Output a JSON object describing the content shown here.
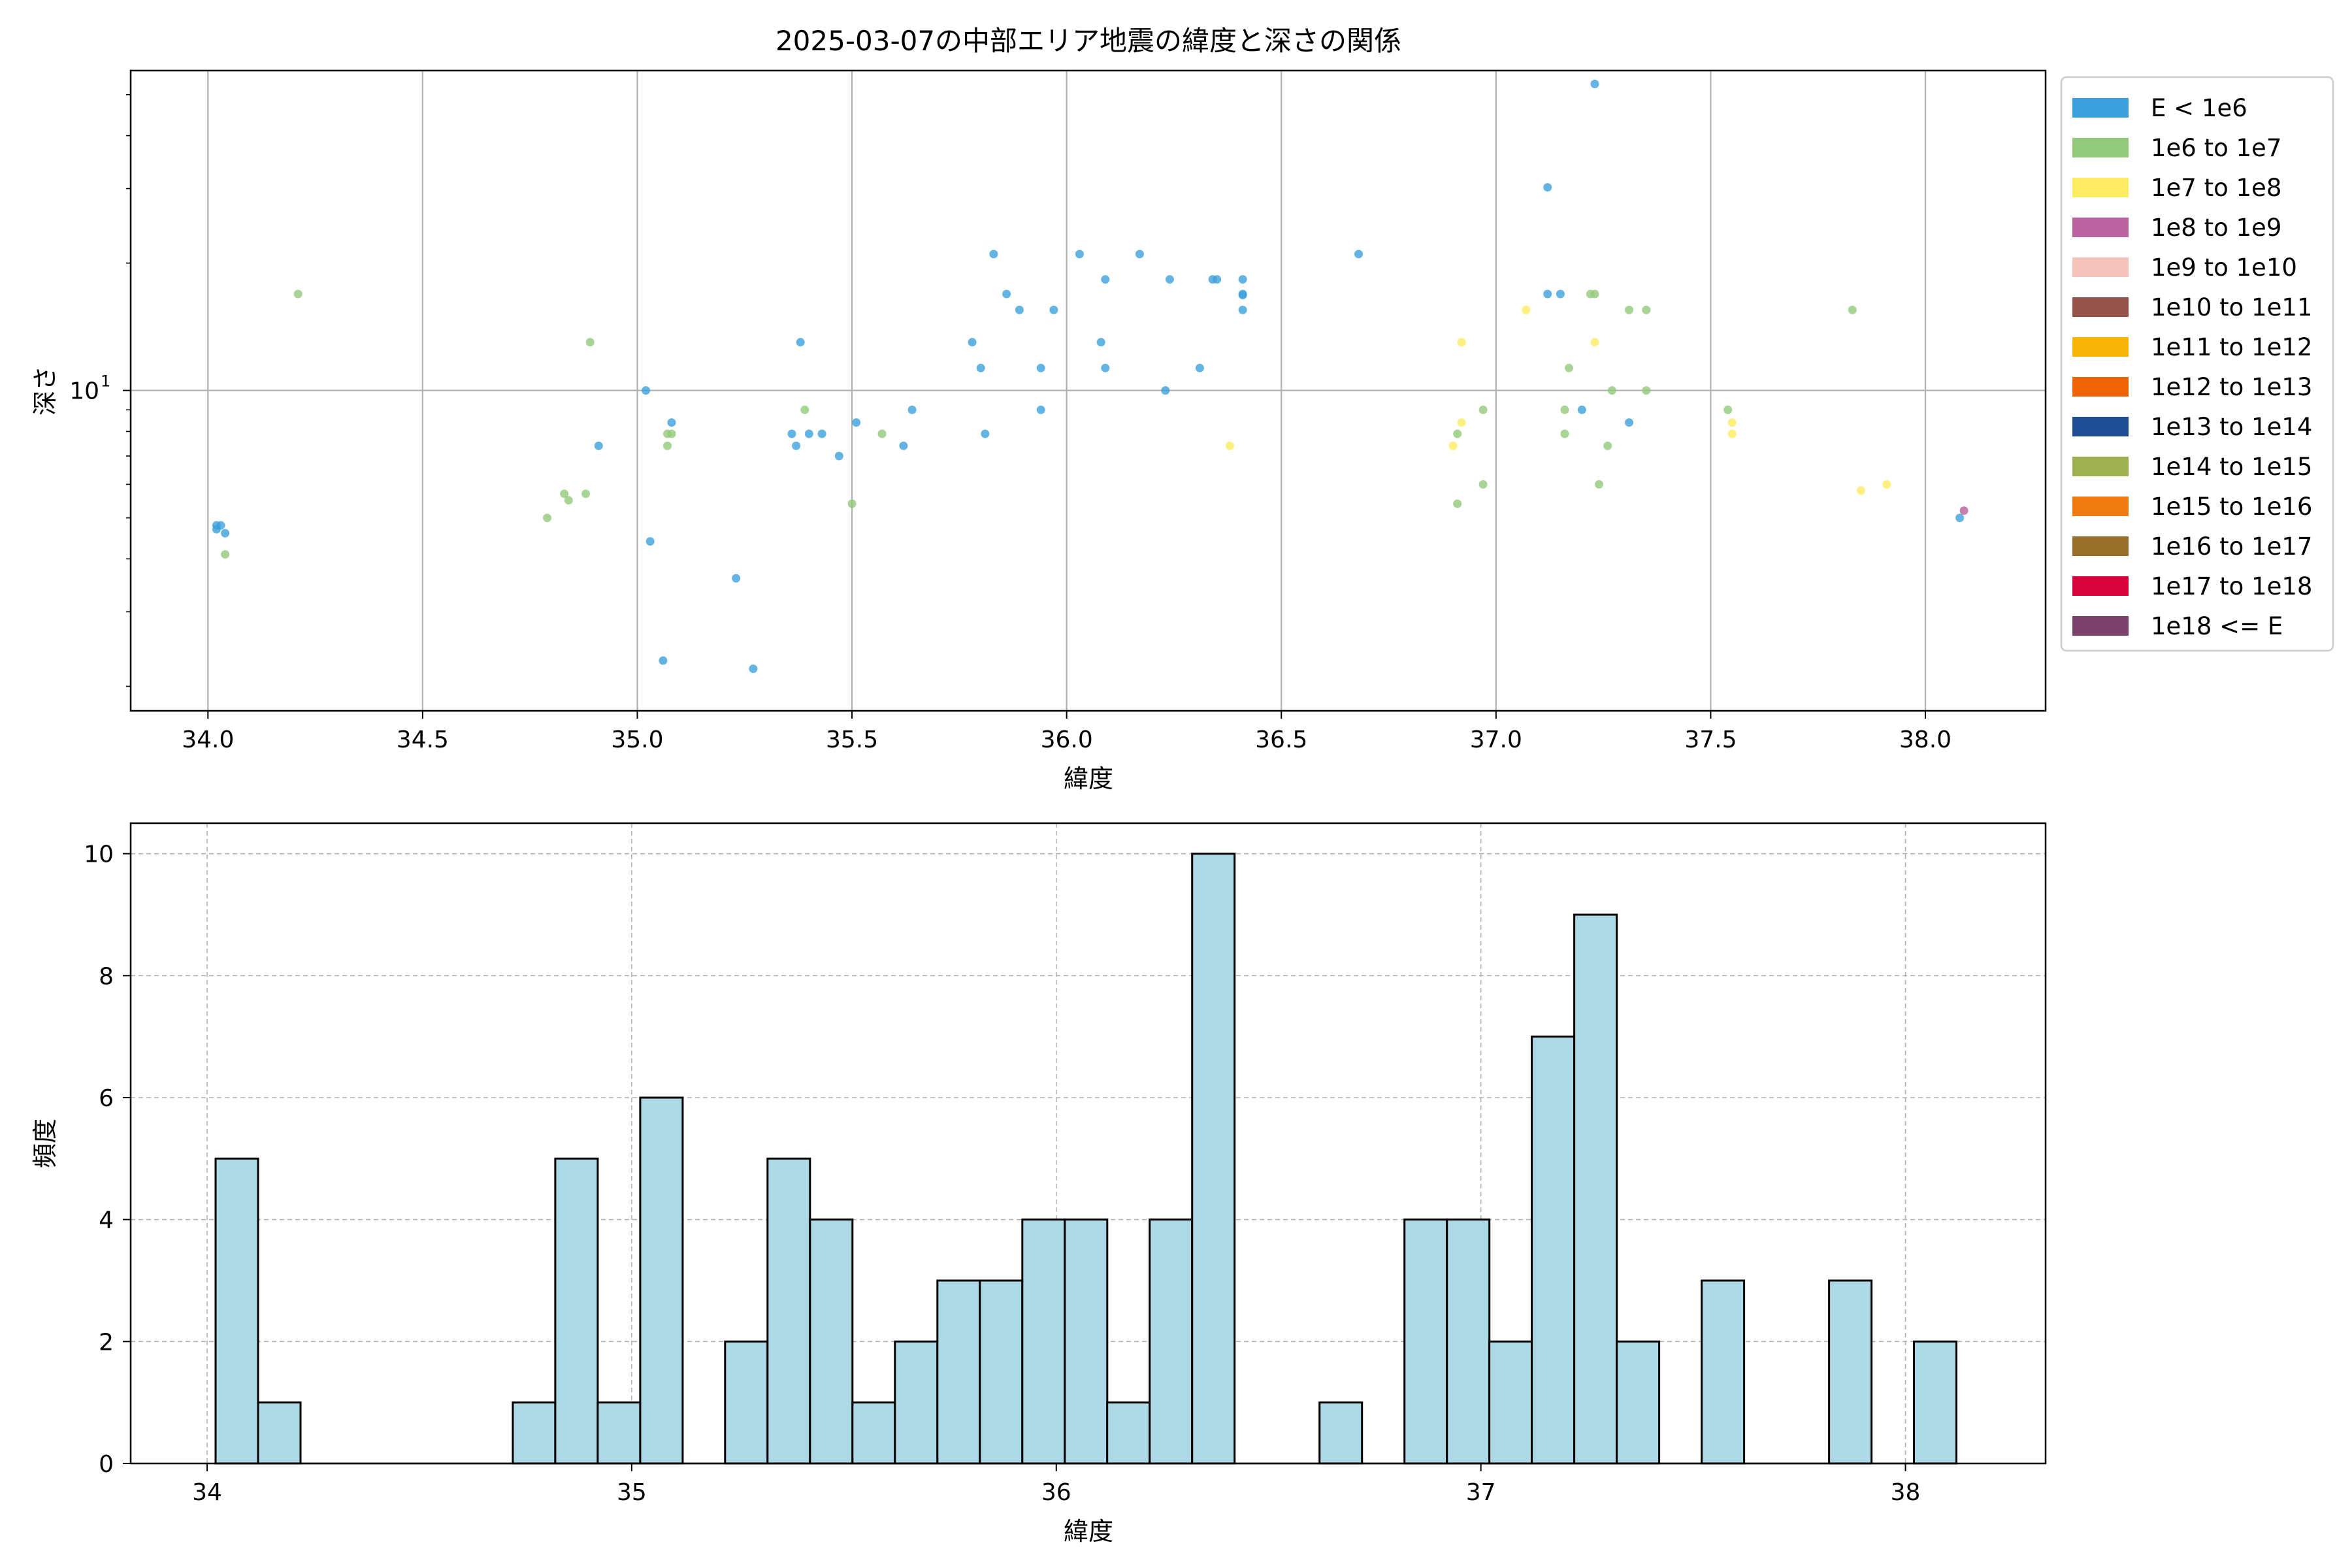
{
  "chart_data": [
    {
      "type": "scatter",
      "title": "2025-03-07の中部エリア地震の緯度と深さの関係",
      "xlabel": "緯度",
      "ylabel": "深さ",
      "xlim": [
        33.82,
        38.28
      ],
      "ylim": [
        1.75,
        57.0
      ],
      "yscale": "log",
      "xticks": [
        34.0,
        34.5,
        35.0,
        35.5,
        36.0,
        36.5,
        37.0,
        37.5,
        38.0
      ],
      "xtick_labels": [
        "34.0",
        "34.5",
        "35.0",
        "35.5",
        "36.0",
        "36.5",
        "37.0",
        "37.5",
        "38.0"
      ],
      "ytick_labels": [
        {
          "base": "10",
          "exp": "1",
          "value": 10
        }
      ],
      "grid": true,
      "legend": {
        "placement": "outside-right-top",
        "entries": [
          {
            "label": "E < 1e6",
            "color": "#3ca0dc"
          },
          {
            "label": "1e6 to 1e7",
            "color": "#92c97b"
          },
          {
            "label": "1e7 to 1e8",
            "color": "#fcec62"
          },
          {
            "label": "1e8 to 1e9",
            "color": "#b9629e"
          },
          {
            "label": "1e9 to 1e10",
            "color": "#f5c2bc"
          },
          {
            "label": "1e10 to 1e11",
            "color": "#955249"
          },
          {
            "label": "1e11 to 1e12",
            "color": "#f8b307"
          },
          {
            "label": "1e12 to 1e13",
            "color": "#ee6302"
          },
          {
            "label": "1e13 to 1e14",
            "color": "#1f4d93"
          },
          {
            "label": "1e14 to 1e15",
            "color": "#9daf4f"
          },
          {
            "label": "1e15 to 1e16",
            "color": "#ef7a0f"
          },
          {
            "label": "1e16 to 1e17",
            "color": "#976d2a"
          },
          {
            "label": "1e17 to 1e18",
            "color": "#d8043e"
          },
          {
            "label": "1e18 <= E",
            "color": "#79416b"
          }
        ]
      },
      "series": [
        {
          "class": 0,
          "points": [
            [
              34.02,
              4.8
            ],
            [
              34.02,
              4.7
            ],
            [
              34.03,
              4.8
            ],
            [
              34.04,
              4.6
            ],
            [
              35.02,
              10.0
            ],
            [
              35.03,
              4.4
            ],
            [
              35.06,
              2.3
            ],
            [
              35.08,
              8.4
            ],
            [
              34.91,
              7.4
            ],
            [
              35.23,
              3.6
            ],
            [
              35.27,
              2.2
            ],
            [
              35.38,
              13.0
            ],
            [
              35.36,
              7.9
            ],
            [
              35.37,
              7.4
            ],
            [
              35.4,
              7.9
            ],
            [
              35.43,
              7.9
            ],
            [
              35.47,
              7.0
            ],
            [
              35.51,
              8.4
            ],
            [
              35.62,
              7.4
            ],
            [
              35.64,
              9.0
            ],
            [
              35.78,
              13.0
            ],
            [
              35.8,
              11.3
            ],
            [
              35.81,
              7.9
            ],
            [
              35.83,
              21.0
            ],
            [
              35.86,
              16.9
            ],
            [
              35.89,
              15.5
            ],
            [
              35.94,
              11.3
            ],
            [
              35.94,
              9.0
            ],
            [
              35.97,
              15.5
            ],
            [
              36.03,
              21.0
            ],
            [
              36.08,
              13.0
            ],
            [
              36.09,
              11.3
            ],
            [
              36.09,
              18.3
            ],
            [
              36.17,
              21.0
            ],
            [
              36.23,
              10.0
            ],
            [
              36.24,
              18.3
            ],
            [
              36.31,
              11.3
            ],
            [
              36.34,
              18.3
            ],
            [
              36.35,
              18.3
            ],
            [
              36.41,
              18.3
            ],
            [
              36.41,
              16.9
            ],
            [
              36.41,
              15.5
            ],
            [
              36.41,
              16.8
            ],
            [
              36.68,
              21.0
            ],
            [
              37.12,
              30.2
            ],
            [
              37.12,
              16.9
            ],
            [
              37.15,
              16.9
            ],
            [
              37.2,
              9.0
            ],
            [
              37.23,
              53.0
            ],
            [
              37.31,
              8.4
            ],
            [
              38.08,
              5.0
            ]
          ]
        },
        {
          "class": 1,
          "points": [
            [
              34.04,
              4.1
            ],
            [
              34.21,
              16.9
            ],
            [
              34.79,
              5.0
            ],
            [
              34.83,
              5.7
            ],
            [
              34.84,
              5.5
            ],
            [
              34.88,
              5.7
            ],
            [
              34.89,
              13.0
            ],
            [
              35.07,
              7.9
            ],
            [
              35.08,
              7.9
            ],
            [
              35.07,
              7.4
            ],
            [
              35.39,
              9.0
            ],
            [
              35.5,
              5.4
            ],
            [
              35.57,
              7.9
            ],
            [
              36.91,
              5.4
            ],
            [
              36.91,
              7.9
            ],
            [
              36.97,
              9.0
            ],
            [
              36.97,
              6.0
            ],
            [
              37.16,
              7.9
            ],
            [
              37.16,
              9.0
            ],
            [
              37.17,
              11.3
            ],
            [
              37.22,
              16.9
            ],
            [
              37.23,
              16.9
            ],
            [
              37.24,
              6.0
            ],
            [
              37.26,
              7.4
            ],
            [
              37.27,
              10.0
            ],
            [
              37.31,
              15.5
            ],
            [
              37.35,
              10.0
            ],
            [
              37.35,
              15.5
            ],
            [
              37.54,
              9.0
            ],
            [
              37.83,
              15.5
            ]
          ]
        },
        {
          "class": 2,
          "points": [
            [
              36.38,
              7.4
            ],
            [
              36.9,
              7.4
            ],
            [
              36.92,
              8.4
            ],
            [
              36.92,
              13.0
            ],
            [
              37.07,
              15.5
            ],
            [
              37.23,
              13.0
            ],
            [
              37.55,
              8.4
            ],
            [
              37.55,
              7.9
            ],
            [
              37.85,
              5.8
            ],
            [
              37.91,
              6.0
            ]
          ]
        },
        {
          "class": 3,
          "points": [
            [
              38.09,
              5.2
            ]
          ]
        }
      ]
    },
    {
      "type": "bar",
      "subtype": "histogram",
      "title": "",
      "xlabel": "緯度",
      "ylabel": "頻度",
      "xlim": [
        33.82,
        38.33
      ],
      "ylim": [
        0,
        10.5
      ],
      "xticks": [
        34,
        35,
        36,
        37,
        38
      ],
      "xtick_labels": [
        "34",
        "35",
        "36",
        "37",
        "38"
      ],
      "yticks": [
        0,
        2,
        4,
        6,
        8,
        10
      ],
      "ytick_labels": [
        "0",
        "2",
        "4",
        "6",
        "8",
        "10"
      ],
      "grid": true,
      "bar_color": "#add8e6",
      "edge_color": "#000000",
      "bin_edges": [
        34.02,
        34.12,
        34.22,
        34.32,
        34.42,
        34.52,
        34.62,
        34.72,
        34.82,
        34.92,
        35.02,
        35.12,
        35.22,
        35.32,
        35.42,
        35.52,
        35.62,
        35.72,
        35.82,
        35.92,
        36.02,
        36.12,
        36.22,
        36.32,
        36.42,
        36.52,
        36.62,
        36.72,
        36.82,
        36.92,
        37.02,
        37.12,
        37.22,
        37.32,
        37.42,
        37.52,
        37.62,
        37.72,
        37.82,
        37.92,
        38.02,
        38.12
      ],
      "values": [
        5,
        1,
        0,
        0,
        0,
        0,
        0,
        1,
        5,
        1,
        6,
        0,
        2,
        5,
        4,
        1,
        2,
        3,
        3,
        4,
        4,
        1,
        4,
        10,
        0,
        0,
        1,
        0,
        4,
        4,
        2,
        7,
        9,
        2,
        0,
        3,
        0,
        0,
        3,
        0,
        2
      ]
    }
  ]
}
